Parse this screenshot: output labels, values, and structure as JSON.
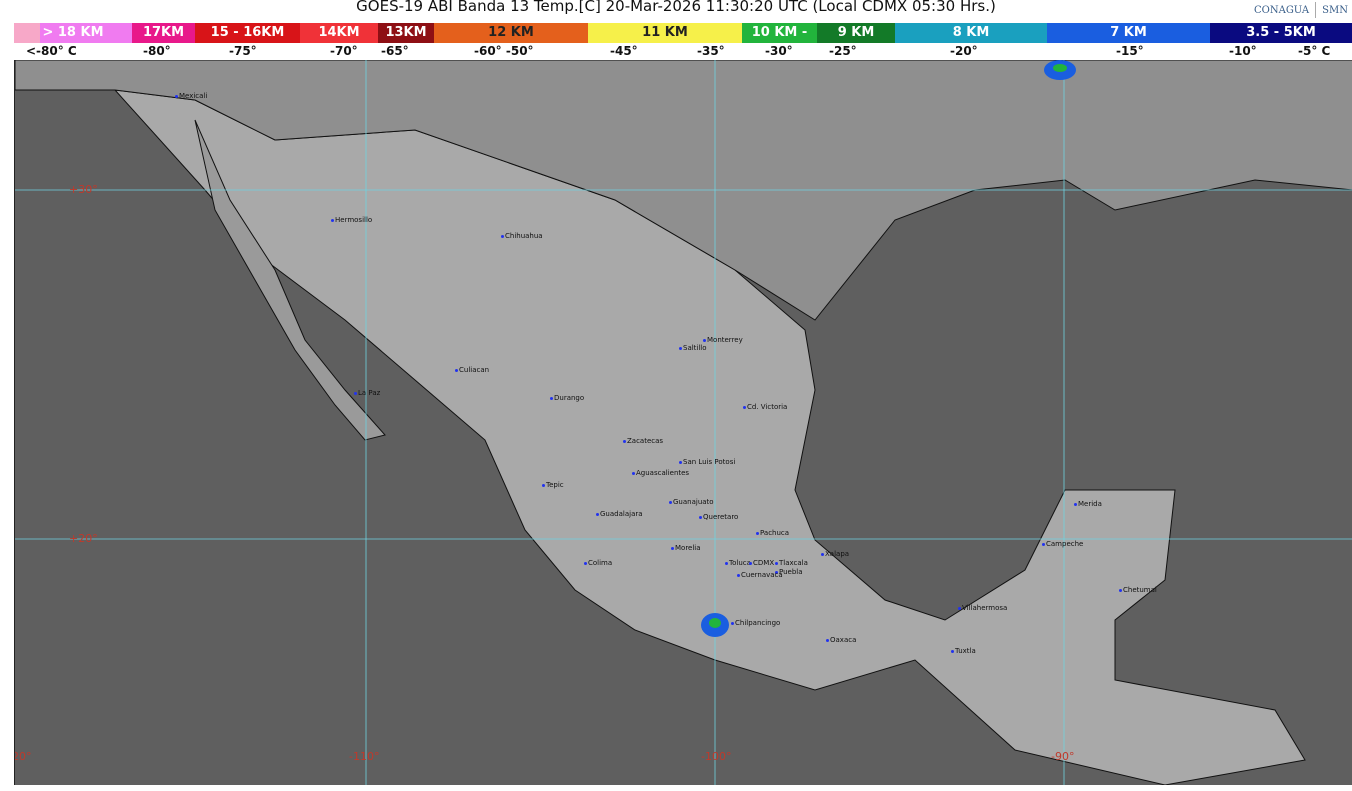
{
  "title": "GOES-19 ABI Banda 13 Temp.[C] 20-Mar-2026 11:30:20 UTC (Local CDMX  05:30 Hrs.)",
  "logos": [
    "CONAGUA",
    "SMN"
  ],
  "scale": [
    {
      "label": "> 18 KM",
      "color": "#f07bf0"
    },
    {
      "label": "17KM",
      "color": "#e8188a"
    },
    {
      "label": "15 - 16KM",
      "color": "#d81418"
    },
    {
      "label": "14KM",
      "color": "#f03238"
    },
    {
      "label": "13KM",
      "color": "#8e0f14"
    },
    {
      "label": "12 KM",
      "color": "#e4601c"
    },
    {
      "label": "11 KM",
      "color": "#f6f04a"
    },
    {
      "label": "10 KM -",
      "color": "#22b43c"
    },
    {
      "label": "9 KM",
      "color": "#137a28"
    },
    {
      "label": "8 KM",
      "color": "#1aa0bf"
    },
    {
      "label": "7 KM",
      "color": "#1a5ee0"
    },
    {
      "label": "3.5 - 5KM",
      "color": "#0a0a80"
    }
  ],
  "temps": [
    "<-80° C",
    "-80°",
    "-75°",
    "-70°",
    "-65°",
    "-60°  -50°",
    "-45°",
    "-35°",
    "-30°",
    "-25°",
    "-20°",
    "-15°",
    "-10°",
    "-5°  C"
  ],
  "latitudes": [
    "+30°",
    "+20°"
  ],
  "longitudes": [
    "-120°",
    "-110°",
    "-100°",
    "-90°"
  ],
  "cities": [
    "Mexicali",
    "Hermosillo",
    "Chihuahua",
    "Monterrey",
    "Saltillo",
    "Culiacan",
    "La Paz",
    "Durango",
    "Cd. Victoria",
    "Zacatecas",
    "San Luis Potosi",
    "Aguascalientes",
    "Tepic",
    "Guanajuato",
    "Guadalajara",
    "Queretaro",
    "Pachuca",
    "Morelia",
    "Xalapa",
    "Toluca",
    "CDMX",
    "Tlaxcala",
    "Colima",
    "Puebla",
    "Cuernavaca",
    "Chilpancingo",
    "Oaxaca",
    "Villahermosa",
    "Tuxtla",
    "Merida",
    "Campeche",
    "Chetumal"
  ]
}
